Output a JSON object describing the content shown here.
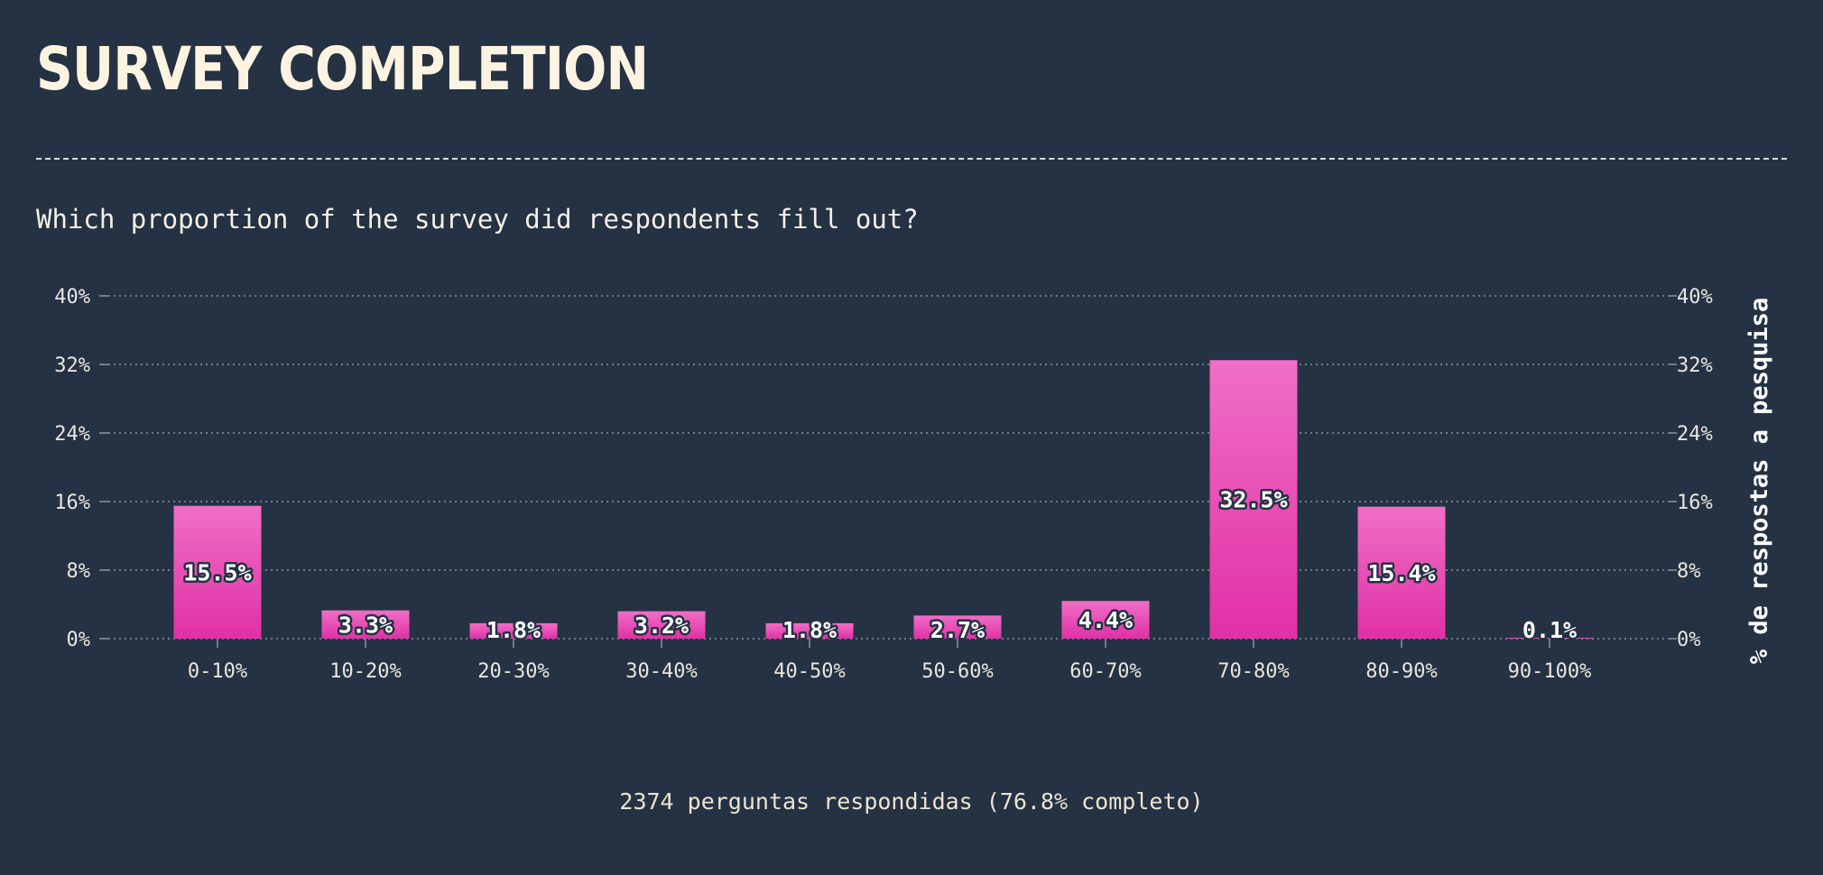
{
  "page": {
    "title": "SURVEY COMPLETION",
    "subtitle": "Which proportion of the survey did respondents fill out?",
    "footer": "2374 perguntas respondidas (76.8% completo)"
  },
  "chart_data": {
    "type": "bar",
    "categories": [
      "0-10%",
      "10-20%",
      "20-30%",
      "30-40%",
      "40-50%",
      "50-60%",
      "60-70%",
      "70-80%",
      "80-90%",
      "90-100%"
    ],
    "values": [
      15.5,
      3.3,
      1.8,
      3.2,
      1.8,
      2.7,
      4.4,
      32.5,
      15.4,
      0.1
    ],
    "value_labels": [
      "15.5%",
      "3.3%",
      "1.8%",
      "3.2%",
      "1.8%",
      "2.7%",
      "4.4%",
      "32.5%",
      "15.4%",
      "0.1%"
    ],
    "ylabel": "% de respostas a pesquisa",
    "ylim": [
      0,
      40
    ],
    "yticks": [
      0,
      8,
      16,
      24,
      32,
      40
    ],
    "ytick_labels": [
      "0%",
      "8%",
      "16%",
      "24%",
      "32%",
      "40%"
    ],
    "grid": true,
    "grid_style": "dotted",
    "colors": {
      "bar_top": "#f06fc6",
      "bar_bottom": "#e030a6",
      "grid": "#8a94a3",
      "text": "#e8e6e0"
    }
  }
}
